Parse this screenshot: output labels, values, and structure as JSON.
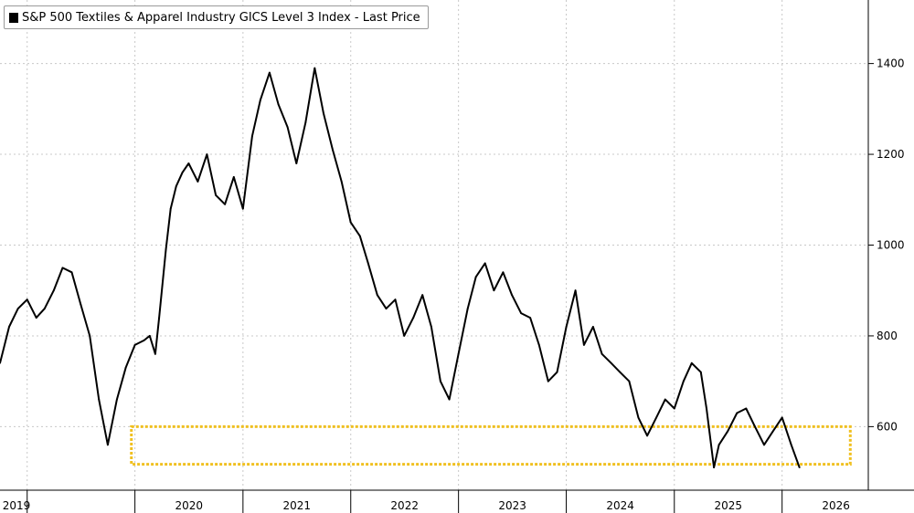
{
  "chart_data": {
    "type": "line",
    "title": "",
    "xlabel": "",
    "ylabel": "",
    "legend": {
      "position": "top-left",
      "entries": [
        "S&P 500 Textiles & Apparel Industry GICS Level 3 Index - Last Price"
      ]
    },
    "grid": true,
    "ylim": [
      460,
      1540
    ],
    "xlim": [
      "2018-10-01",
      "2026-10-20"
    ],
    "y_ticks": [
      600,
      800,
      1000,
      1200,
      1400
    ],
    "x_tick_labels": [
      "2019",
      "2020",
      "2021",
      "2022",
      "2023",
      "2024",
      "2025",
      "2026"
    ],
    "x_tick_positions": [
      "2019-01-01",
      "2020-01-01",
      "2021-01-01",
      "2022-01-01",
      "2023-01-01",
      "2024-01-01",
      "2025-01-01",
      "2026-01-01"
    ],
    "highlight_box": {
      "x_from": "2019-12-20",
      "x_to": "2026-08-20",
      "y_from": 517,
      "y_to": 600,
      "color": "#f0c020"
    },
    "series": [
      {
        "name": "S&P 500 Textiles & Apparel Industry GICS Level 3 Index - Last Price",
        "color": "#000000",
        "x": [
          "2018-10-01",
          "2018-11-01",
          "2018-12-01",
          "2019-01-01",
          "2019-02-01",
          "2019-03-01",
          "2019-04-01",
          "2019-05-01",
          "2019-06-01",
          "2019-07-01",
          "2019-08-01",
          "2019-09-01",
          "2019-10-01",
          "2019-11-01",
          "2019-12-01",
          "2020-01-01",
          "2020-02-01",
          "2020-02-20",
          "2020-03-10",
          "2020-03-23",
          "2020-04-15",
          "2020-05-01",
          "2020-05-20",
          "2020-06-10",
          "2020-07-01",
          "2020-08-01",
          "2020-09-01",
          "2020-10-01",
          "2020-11-01",
          "2020-12-01",
          "2021-01-01",
          "2021-02-01",
          "2021-03-01",
          "2021-04-01",
          "2021-05-01",
          "2021-06-01",
          "2021-07-01",
          "2021-08-01",
          "2021-09-01",
          "2021-10-01",
          "2021-11-01",
          "2021-12-01",
          "2022-01-01",
          "2022-02-01",
          "2022-03-01",
          "2022-04-01",
          "2022-05-01",
          "2022-06-01",
          "2022-07-01",
          "2022-08-01",
          "2022-09-01",
          "2022-10-01",
          "2022-11-01",
          "2022-12-01",
          "2023-01-01",
          "2023-02-01",
          "2023-03-01",
          "2023-04-01",
          "2023-05-01",
          "2023-06-01",
          "2023-07-01",
          "2023-08-01",
          "2023-09-01",
          "2023-10-01",
          "2023-11-01",
          "2023-12-01",
          "2024-01-01",
          "2024-02-01",
          "2024-03-01",
          "2024-04-01",
          "2024-05-01",
          "2024-06-01",
          "2024-07-01",
          "2024-08-01",
          "2024-09-01",
          "2024-10-01",
          "2024-11-01",
          "2024-12-01",
          "2025-01-01",
          "2025-02-01",
          "2025-03-01",
          "2025-04-01",
          "2025-04-20",
          "2025-05-15",
          "2025-06-01",
          "2025-07-01",
          "2025-08-01",
          "2025-09-01",
          "2025-10-01",
          "2025-11-01",
          "2025-12-01",
          "2026-01-01",
          "2026-02-01",
          "2026-03-01"
        ],
        "values": [
          740,
          820,
          860,
          880,
          840,
          860,
          900,
          950,
          940,
          870,
          800,
          660,
          560,
          660,
          730,
          780,
          790,
          800,
          760,
          840,
          990,
          1080,
          1130,
          1160,
          1180,
          1140,
          1200,
          1110,
          1090,
          1150,
          1080,
          1240,
          1320,
          1380,
          1310,
          1260,
          1180,
          1270,
          1390,
          1290,
          1210,
          1140,
          1050,
          1020,
          960,
          890,
          860,
          880,
          800,
          840,
          890,
          820,
          700,
          660,
          760,
          860,
          930,
          960,
          900,
          940,
          890,
          850,
          840,
          780,
          700,
          720,
          820,
          900,
          780,
          820,
          760,
          740,
          720,
          700,
          620,
          580,
          620,
          660,
          640,
          700,
          740,
          720,
          640,
          510,
          560,
          590,
          630,
          640,
          600,
          560,
          590,
          620,
          560,
          510
        ]
      }
    ]
  }
}
